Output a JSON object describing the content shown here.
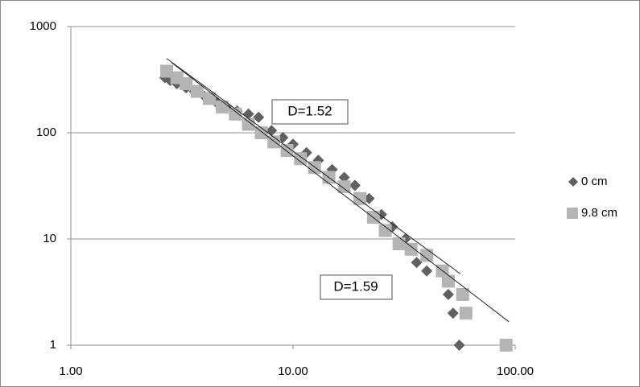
{
  "chart_data": {
    "type": "scatter",
    "xlog": true,
    "ylog": true,
    "xlim": [
      1,
      100
    ],
    "ylim": [
      1,
      1000
    ],
    "xticks": [
      {
        "value": 1,
        "label": "1.00"
      },
      {
        "value": 10,
        "label": "10.00"
      },
      {
        "value": 100,
        "label": "100.00"
      }
    ],
    "yticks": [
      1,
      10,
      100,
      1000
    ],
    "grid": true,
    "legend": "right",
    "series": [
      {
        "name": "0 cm",
        "color": "#606060",
        "marker": "diamond",
        "x": [
          2.65,
          2.8,
          3.0,
          3.3,
          3.6,
          4.0,
          4.5,
          5.0,
          5.6,
          6.3,
          7.0,
          8.0,
          9.0,
          10.0,
          11.5,
          13,
          15,
          17,
          19,
          22,
          25,
          28,
          32,
          36,
          40,
          50,
          52.5,
          56
        ],
        "values": [
          330,
          310,
          290,
          265,
          245,
          220,
          195,
          175,
          160,
          150,
          140,
          105,
          90,
          78,
          65,
          55,
          45,
          38,
          32,
          24,
          17,
          13,
          10,
          6,
          5,
          3,
          2,
          1
        ]
      },
      {
        "name": "9.8 cm",
        "color": "#b4b4b4",
        "marker": "square",
        "x": [
          2.7,
          3.0,
          3.3,
          3.7,
          4.2,
          4.8,
          5.5,
          6.3,
          7.2,
          8.2,
          9.4,
          10.8,
          12.5,
          14.5,
          17,
          20,
          23,
          26,
          30,
          34,
          40,
          47,
          50,
          58,
          60,
          91
        ],
        "values": [
          380,
          330,
          290,
          245,
          210,
          175,
          150,
          120,
          100,
          82,
          68,
          57,
          47,
          38,
          31,
          24,
          16,
          12,
          9,
          8,
          7,
          5,
          4,
          3,
          2,
          1
        ]
      }
    ],
    "trendlines": [
      {
        "x": [
          2.7,
          56.6
        ],
        "values": [
          500,
          4.7
        ]
      },
      {
        "x": [
          2.84,
          93.7
        ],
        "values": [
          458,
          1.66
        ]
      }
    ],
    "annotations": [
      "D=1.52",
      "D=1.59"
    ]
  }
}
